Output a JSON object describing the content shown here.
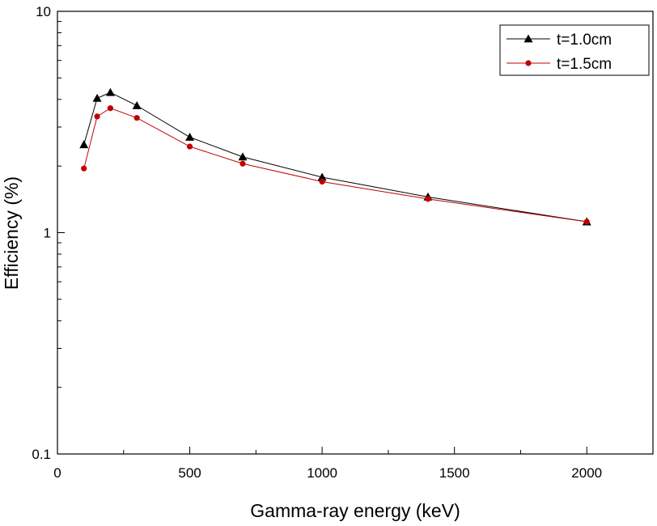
{
  "chart_data": {
    "type": "line",
    "title": "",
    "xlabel": "Gamma-ray energy (keV)",
    "ylabel": "Efficiency (%)",
    "xlim": [
      0,
      2250
    ],
    "ylim": [
      0.1,
      10
    ],
    "yscale": "log",
    "grid": false,
    "legend_position": "top-right",
    "x_ticks": [
      0,
      500,
      1000,
      1500,
      2000
    ],
    "x_tick_labels": [
      "0",
      "500",
      "1000",
      "1500",
      "2000"
    ],
    "y_ticks": [
      0.1,
      1,
      10
    ],
    "y_tick_labels": [
      "0.1",
      "1",
      "10"
    ],
    "x": [
      100,
      150,
      200,
      300,
      500,
      700,
      1000,
      1400,
      2000
    ],
    "series": [
      {
        "name": "t=1.0cm",
        "color": "#000000",
        "marker": "triangle",
        "values": [
          2.5,
          4.05,
          4.3,
          3.75,
          2.7,
          2.2,
          1.78,
          1.45,
          1.12
        ]
      },
      {
        "name": "t=1.5cm",
        "color": "#c00000",
        "marker": "circle",
        "values": [
          1.95,
          3.35,
          3.65,
          3.3,
          2.45,
          2.05,
          1.7,
          1.42,
          1.12
        ]
      }
    ]
  }
}
